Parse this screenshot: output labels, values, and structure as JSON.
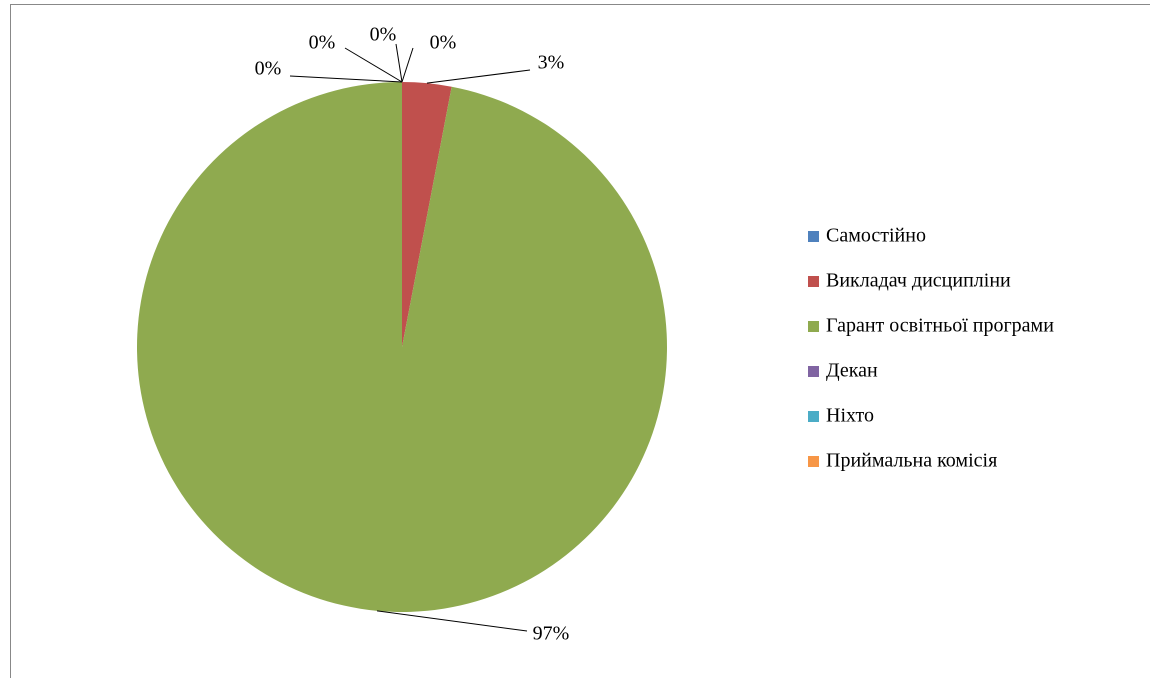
{
  "chart_data": {
    "type": "pie",
    "categories": [
      "Самостійно",
      "Викладач дисципліни",
      "Гарант освітньої програми",
      "Декан",
      "Ніхто",
      "Приймальна комісія"
    ],
    "values": [
      0,
      3,
      97,
      0,
      0,
      0
    ],
    "value_labels": [
      "0%",
      "3%",
      "97%",
      "0%",
      "0%",
      "0%"
    ],
    "colors": [
      "#4f81bd",
      "#c0504d",
      "#8faa4f",
      "#8064a2",
      "#4bacc6",
      "#f79646"
    ],
    "legend": "right"
  }
}
